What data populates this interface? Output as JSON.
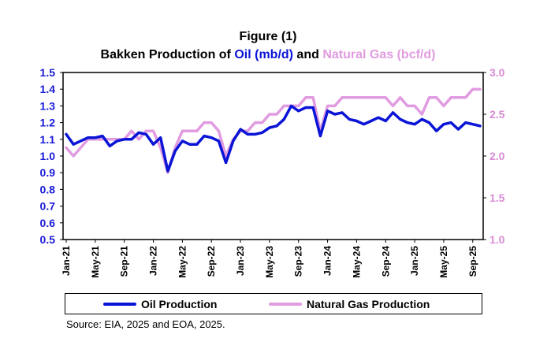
{
  "title": {
    "line1": "Figure (1)",
    "line2_prefix": "Bakken Production of ",
    "line2_oil": "Oil (mb/d)",
    "line2_and": " and ",
    "line2_gas": "Natural Gas (bcf/d)"
  },
  "legend": {
    "oil": "Oil Production",
    "gas": "Natural Gas Production"
  },
  "source": "Source: EIA, 2025 and EOA, 2025.",
  "colors": {
    "oil": "#0a14d6",
    "gas": "#e19be0",
    "left_axis": "#1a1ad8",
    "right_axis": "#d88bd6"
  },
  "chart_data": {
    "type": "line",
    "x": [
      "Jan-21",
      "Feb-21",
      "Mar-21",
      "Apr-21",
      "May-21",
      "Jun-21",
      "Jul-21",
      "Aug-21",
      "Sep-21",
      "Oct-21",
      "Nov-21",
      "Dec-21",
      "Jan-22",
      "Feb-22",
      "Mar-22",
      "Apr-22",
      "May-22",
      "Jun-22",
      "Jul-22",
      "Aug-22",
      "Sep-22",
      "Oct-22",
      "Nov-22",
      "Dec-22",
      "Jan-23",
      "Feb-23",
      "Mar-23",
      "Apr-23",
      "May-23",
      "Jun-23",
      "Jul-23",
      "Aug-23",
      "Sep-23",
      "Oct-23",
      "Nov-23",
      "Dec-23",
      "Jan-24",
      "Feb-24",
      "Mar-24",
      "Apr-24",
      "May-24",
      "Jun-24",
      "Jul-24",
      "Aug-24",
      "Sep-24",
      "Oct-24",
      "Nov-24",
      "Dec-24",
      "Jan-25",
      "Feb-25",
      "Mar-25",
      "Apr-25",
      "May-25",
      "Jun-25",
      "Jul-25",
      "Aug-25",
      "Sep-25",
      "Oct-25"
    ],
    "x_tick_labels": [
      "Jan-21",
      "May-21",
      "Sep-21",
      "Jan-22",
      "May-22",
      "Sep-22",
      "Jan-23",
      "May-23",
      "Sep-23",
      "Jan-24",
      "May-24",
      "Sep-24",
      "Jan-25",
      "May-25",
      "Sep-25"
    ],
    "series": [
      {
        "name": "Oil Production",
        "axis": "left",
        "values": [
          1.13,
          1.07,
          1.09,
          1.11,
          1.11,
          1.12,
          1.06,
          1.09,
          1.1,
          1.1,
          1.14,
          1.13,
          1.07,
          1.11,
          0.91,
          1.03,
          1.09,
          1.07,
          1.07,
          1.12,
          1.11,
          1.09,
          0.96,
          1.09,
          1.16,
          1.13,
          1.13,
          1.14,
          1.17,
          1.18,
          1.22,
          1.3,
          1.27,
          1.29,
          1.29,
          1.12,
          1.27,
          1.25,
          1.26,
          1.22,
          1.21,
          1.19,
          1.21,
          1.23,
          1.21,
          1.26,
          1.22,
          1.2,
          1.19,
          1.22,
          1.2,
          1.15,
          1.19,
          1.2,
          1.16,
          1.2,
          1.19,
          1.18
        ]
      },
      {
        "name": "Natural Gas Production",
        "axis": "right",
        "values": [
          2.1,
          2.0,
          2.1,
          2.2,
          2.2,
          2.2,
          2.2,
          2.2,
          2.2,
          2.3,
          2.2,
          2.3,
          2.3,
          2.1,
          1.8,
          2.1,
          2.3,
          2.3,
          2.3,
          2.4,
          2.4,
          2.3,
          2.0,
          2.2,
          2.3,
          2.3,
          2.4,
          2.4,
          2.5,
          2.5,
          2.6,
          2.6,
          2.6,
          2.7,
          2.7,
          2.3,
          2.6,
          2.6,
          2.7,
          2.7,
          2.7,
          2.7,
          2.7,
          2.7,
          2.7,
          2.6,
          2.7,
          2.6,
          2.6,
          2.5,
          2.7,
          2.7,
          2.6,
          2.7,
          2.7,
          2.7,
          2.8,
          2.8
        ]
      }
    ],
    "ylim_left": [
      0.5,
      1.5
    ],
    "yticks_left": [
      "1.5",
      "1.4",
      "1.3",
      "1.2",
      "1.1",
      "1.0",
      "0.9",
      "0.8",
      "0.7",
      "0.6",
      "0.5"
    ],
    "ylim_right": [
      1.0,
      3.0
    ],
    "yticks_right": [
      "3.0",
      "2.5",
      "2.0",
      "1.5",
      "1.0"
    ],
    "grid": false,
    "legend_position": "bottom"
  }
}
